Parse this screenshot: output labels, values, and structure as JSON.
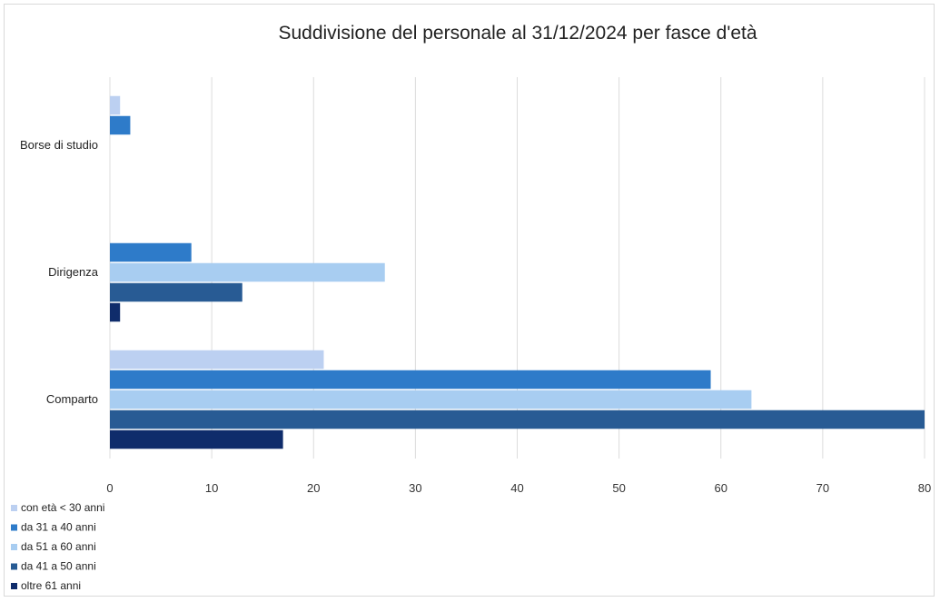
{
  "chart_data": {
    "type": "bar",
    "orientation": "horizontal",
    "title": "Suddivisione del personale al 31/12/2024 per fasce d'età",
    "categories": [
      "Borse di studio",
      "Dirigenza",
      "Comparto"
    ],
    "series": [
      {
        "name": "con età < 30 anni",
        "color": "#bcd0f1",
        "values": [
          1,
          0,
          21
        ]
      },
      {
        "name": "da 31 a 40 anni",
        "color": "#2e7bc9",
        "values": [
          2,
          8,
          59
        ]
      },
      {
        "name": "da 51 a 60 anni",
        "color": "#a8cdf1",
        "values": [
          0,
          27,
          63
        ]
      },
      {
        "name": "da 41 a 50 anni",
        "color": "#285b94",
        "values": [
          0,
          13,
          80
        ]
      },
      {
        "name": "oltre 61 anni",
        "color": "#0f2c6b",
        "values": [
          0,
          1,
          17
        ]
      }
    ],
    "xlim": [
      0,
      80
    ],
    "xticks": [
      0,
      10,
      20,
      30,
      40,
      50,
      60,
      70,
      80
    ],
    "grid": true,
    "legend_position": "bottom-left"
  }
}
